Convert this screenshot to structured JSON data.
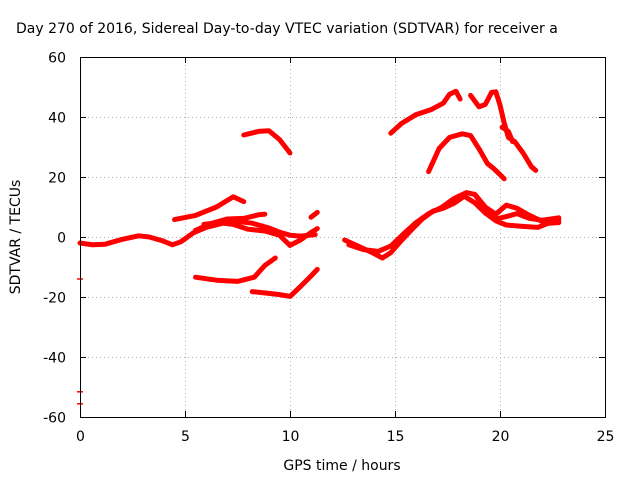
{
  "chart_data": {
    "type": "scatter",
    "title": "Day 270 of 2016, Sidereal Day-to-day VTEC variation (SDTVAR) for receiver a",
    "xlabel": "GPS time / hours",
    "ylabel": "SDTVAR / TECUs",
    "xlim": [
      0,
      25
    ],
    "ylim": [
      -60,
      60
    ],
    "xticks": [
      0,
      5,
      10,
      15,
      20,
      25
    ],
    "yticks": [
      -60,
      -40,
      -20,
      0,
      20,
      40,
      60
    ],
    "xtick_labels": [
      "0",
      "5",
      "10",
      "15",
      "20",
      "25"
    ],
    "ytick_labels": [
      "-60",
      "-40",
      "-20",
      "0",
      "20",
      "40",
      "60"
    ],
    "grid": true,
    "marker": "plus",
    "color": "#ff0000",
    "series": [
      {
        "name": "s1",
        "points": [
          [
            0,
            -2
          ],
          [
            0.6,
            -2.6
          ],
          [
            1.2,
            -2.4
          ],
          [
            2,
            -0.8
          ],
          [
            2.8,
            0.4
          ],
          [
            3.3,
            0
          ],
          [
            3.9,
            -1.2
          ],
          [
            4.4,
            -2.6
          ],
          [
            4.8,
            -1.6
          ],
          [
            5.4,
            1.4
          ],
          [
            6,
            3.2
          ],
          [
            6.8,
            4.6
          ],
          [
            7.5,
            5.2
          ],
          [
            8.2,
            4.6
          ],
          [
            9,
            3
          ],
          [
            9.5,
            1.6
          ],
          [
            10,
            0.6
          ],
          [
            10.5,
            0.3
          ],
          [
            11.2,
            0.8
          ]
        ]
      },
      {
        "name": "s2",
        "points": [
          [
            4.5,
            5.8
          ],
          [
            5.5,
            7.2
          ],
          [
            6.5,
            10
          ],
          [
            7.3,
            13.4
          ],
          [
            7.8,
            11.8
          ]
        ]
      },
      {
        "name": "s3",
        "points": [
          [
            5.5,
            2.2
          ],
          [
            6.2,
            4.4
          ],
          [
            7,
            6
          ],
          [
            7.8,
            6.2
          ],
          [
            8.5,
            7.4
          ],
          [
            8.8,
            7.6
          ]
        ]
      },
      {
        "name": "s4",
        "points": [
          [
            5.9,
            4.2
          ],
          [
            6.6,
            4.8
          ],
          [
            7.3,
            4.2
          ],
          [
            8,
            2.6
          ],
          [
            8.8,
            2
          ],
          [
            9.5,
            0.6
          ],
          [
            10,
            -2.8
          ],
          [
            10.5,
            -1
          ],
          [
            11,
            1.5
          ],
          [
            11.3,
            2.8
          ]
        ]
      },
      {
        "name": "s5",
        "points": [
          [
            7.8,
            34
          ],
          [
            8.5,
            35.2
          ],
          [
            9,
            35.4
          ],
          [
            9.5,
            32.5
          ],
          [
            10,
            28
          ]
        ]
      },
      {
        "name": "s6",
        "points": [
          [
            5.5,
            -13.4
          ],
          [
            6.5,
            -14.4
          ],
          [
            7.5,
            -14.8
          ],
          [
            8.3,
            -13.4
          ],
          [
            8.8,
            -9.5
          ],
          [
            9.3,
            -7
          ]
        ]
      },
      {
        "name": "s7",
        "points": [
          [
            8.2,
            -18.2
          ],
          [
            9,
            -18.8
          ],
          [
            9.5,
            -19.2
          ],
          [
            10,
            -19.8
          ],
          [
            10.5,
            -16.5
          ],
          [
            11,
            -13
          ],
          [
            11.3,
            -10.8
          ]
        ]
      },
      {
        "name": "s8",
        "points": [
          [
            11,
            6.6
          ],
          [
            11.3,
            8.2
          ]
        ]
      },
      {
        "name": "s9",
        "points": [
          [
            12.6,
            -1
          ],
          [
            13.3,
            -3.2
          ],
          [
            14,
            -5.5
          ],
          [
            14.4,
            -7
          ],
          [
            14.8,
            -5.2
          ],
          [
            15.3,
            -1.2
          ],
          [
            15.8,
            2.5
          ],
          [
            16.3,
            6
          ],
          [
            16.8,
            8.6
          ],
          [
            17.3,
            9.6
          ],
          [
            17.8,
            11.2
          ],
          [
            18.3,
            13.6
          ],
          [
            18.8,
            11.4
          ],
          [
            19.3,
            8
          ],
          [
            19.8,
            5.4
          ],
          [
            20.3,
            4
          ],
          [
            21,
            3.6
          ],
          [
            21.8,
            3.2
          ],
          [
            22.3,
            4.6
          ],
          [
            22.8,
            4.8
          ]
        ]
      },
      {
        "name": "s10",
        "points": [
          [
            12.8,
            -2.6
          ],
          [
            13.5,
            -4.2
          ],
          [
            14.2,
            -4.8
          ],
          [
            14.8,
            -3
          ],
          [
            15.4,
            1
          ],
          [
            16,
            4.8
          ],
          [
            16.6,
            7.8
          ],
          [
            17.2,
            9.8
          ],
          [
            17.8,
            12.8
          ],
          [
            18.4,
            14.8
          ],
          [
            18.8,
            14.2
          ],
          [
            19.3,
            9.5
          ],
          [
            19.8,
            6
          ],
          [
            20.3,
            6.8
          ],
          [
            20.8,
            7.8
          ],
          [
            21.4,
            6.2
          ],
          [
            22,
            5.6
          ],
          [
            22.8,
            6.4
          ]
        ]
      },
      {
        "name": "s11",
        "points": [
          [
            18.8,
            14.2
          ],
          [
            19.3,
            10
          ],
          [
            19.8,
            7.6
          ],
          [
            20.3,
            10.6
          ],
          [
            20.8,
            9.6
          ],
          [
            21.3,
            7.6
          ],
          [
            22,
            5.2
          ],
          [
            22.8,
            5.6
          ]
        ]
      },
      {
        "name": "s12",
        "points": [
          [
            14.8,
            34.6
          ],
          [
            15.3,
            37.8
          ],
          [
            16,
            40.8
          ],
          [
            16.7,
            42.4
          ],
          [
            17.3,
            44.6
          ],
          [
            17.6,
            47.6
          ],
          [
            17.9,
            48.6
          ],
          [
            18.1,
            46
          ]
        ]
      },
      {
        "name": "s13",
        "points": [
          [
            16.6,
            21.8
          ],
          [
            17.1,
            29.5
          ],
          [
            17.6,
            33.2
          ],
          [
            18.2,
            34.4
          ],
          [
            18.6,
            33.8
          ],
          [
            19,
            29.4
          ],
          [
            19.4,
            24.5
          ],
          [
            19.7,
            22.8
          ],
          [
            20,
            20.8
          ],
          [
            20.2,
            19.4
          ]
        ]
      },
      {
        "name": "s14",
        "points": [
          [
            18.6,
            47.2
          ],
          [
            19,
            43.4
          ],
          [
            19.3,
            44.2
          ],
          [
            19.6,
            48.2
          ],
          [
            19.8,
            48.4
          ],
          [
            20,
            44
          ],
          [
            20.2,
            38
          ],
          [
            20.4,
            33.2
          ],
          [
            20.7,
            31.8
          ],
          [
            21.1,
            28
          ],
          [
            21.5,
            23.4
          ],
          [
            21.7,
            22.2
          ]
        ]
      },
      {
        "name": "s15",
        "points": [
          [
            20.1,
            36.6
          ],
          [
            20.4,
            35.2
          ],
          [
            20.6,
            31.8
          ]
        ]
      }
    ],
    "isolated_points": [
      [
        0,
        -14
      ],
      [
        0,
        -51.6
      ],
      [
        0,
        -55.6
      ]
    ]
  }
}
